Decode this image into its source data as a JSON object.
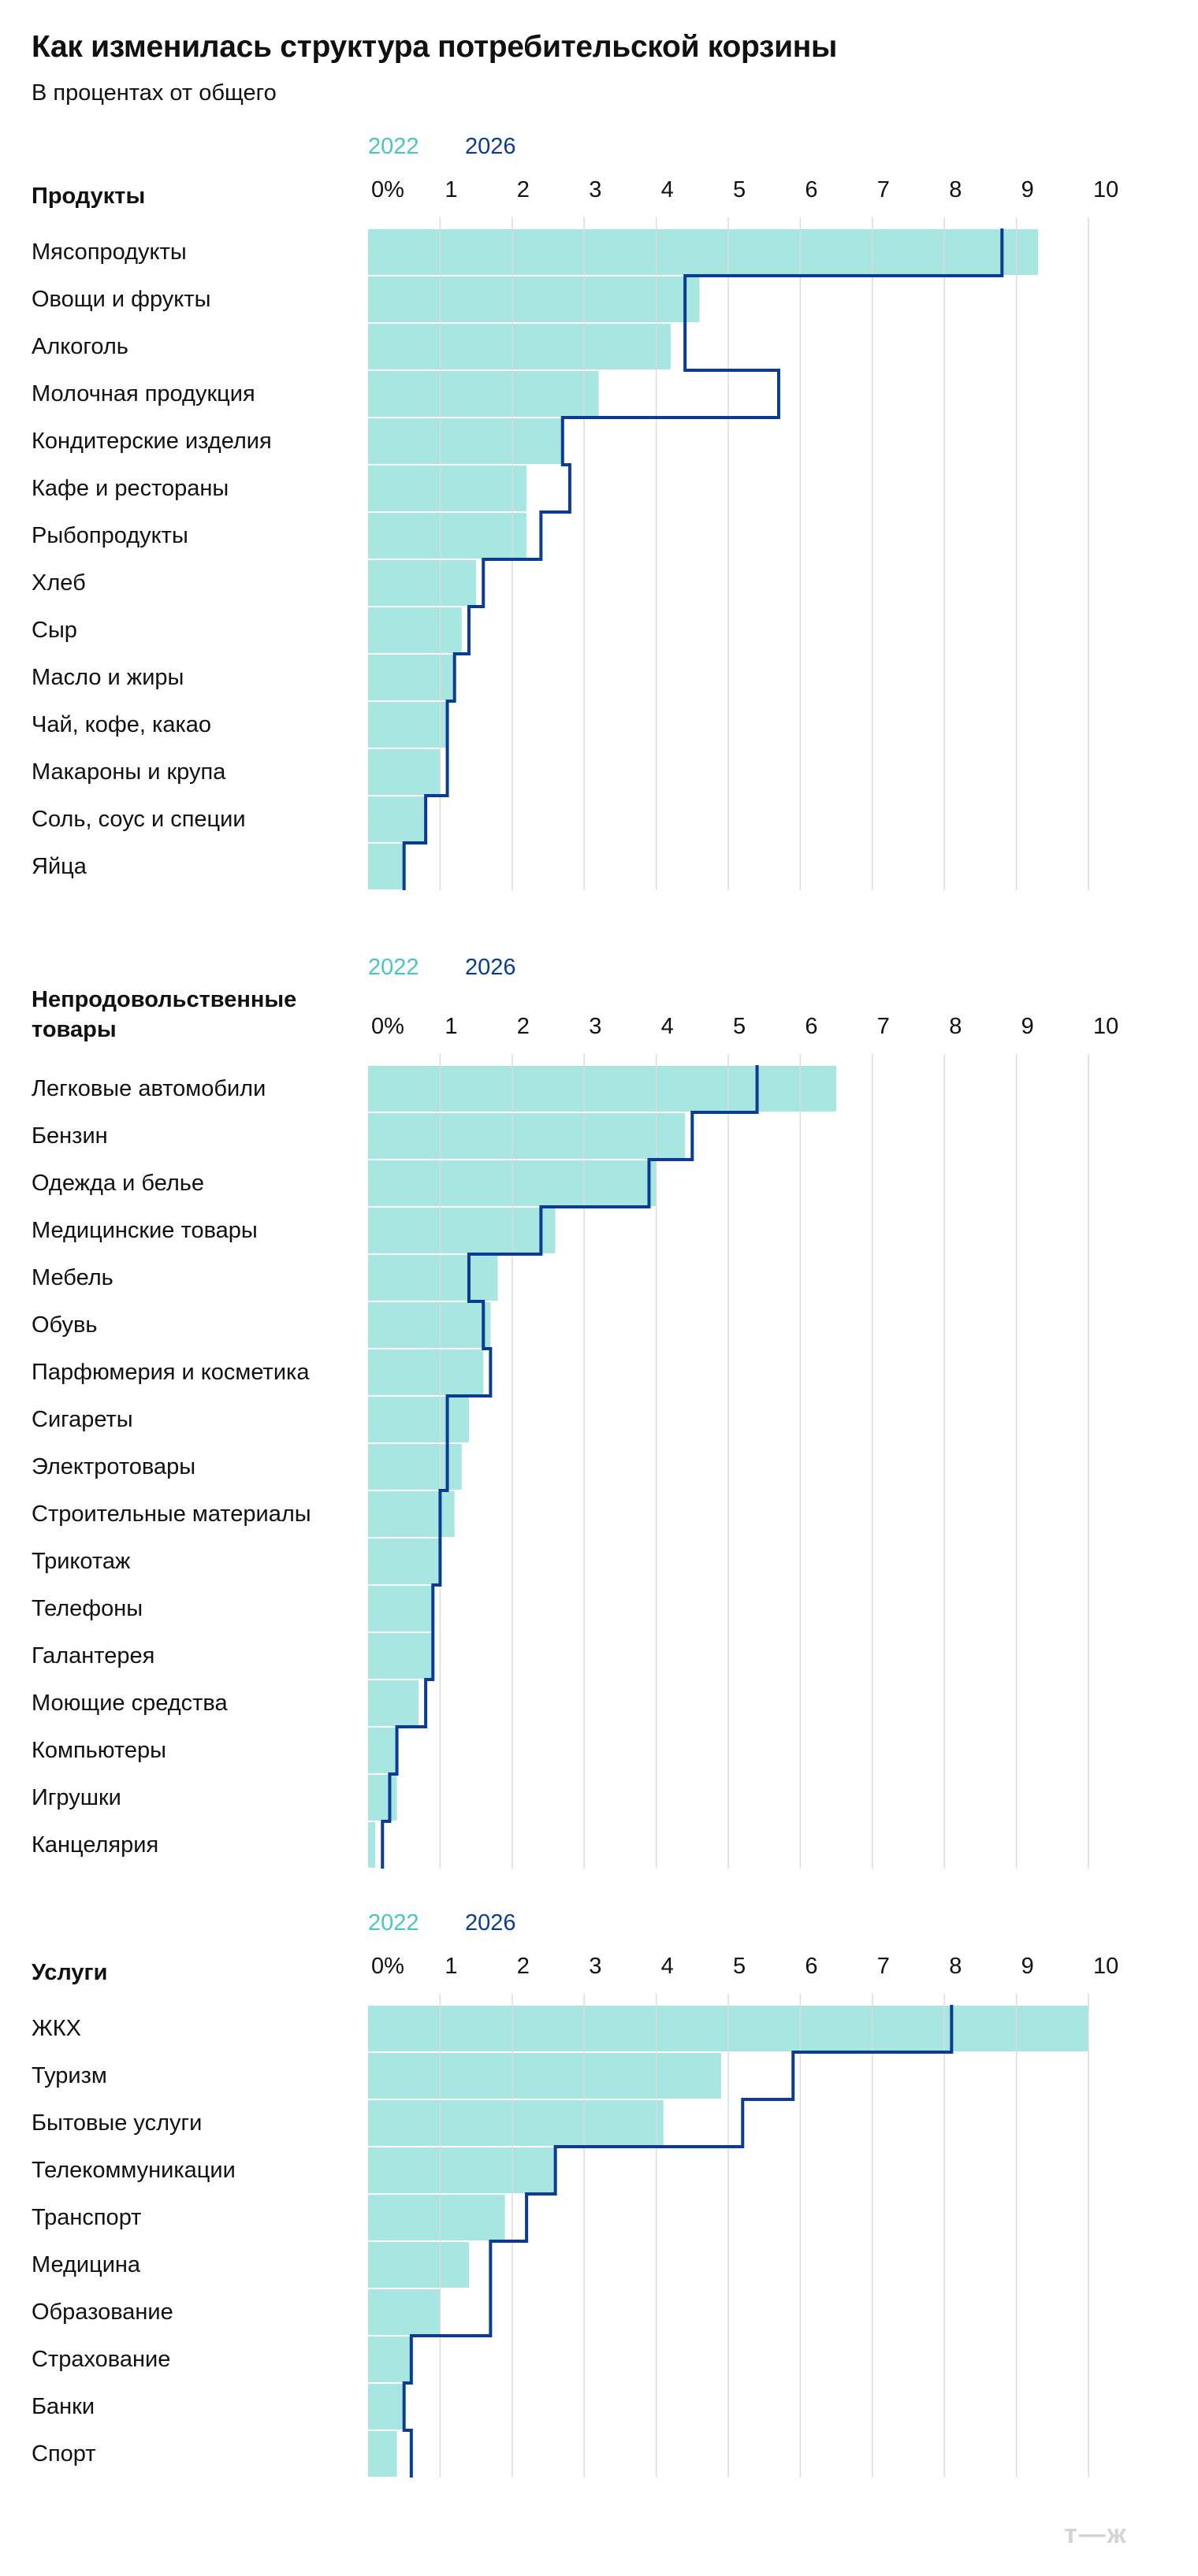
{
  "title": "Как изменилась структура потребительской корзины",
  "subtitle": "В процентах от общего",
  "logo": "т—ж",
  "colors": {
    "series_2022": "#a8e6e2",
    "series_2026": "#0a3d91",
    "legend_2022": "#49c6bf",
    "grid": "#dcdcdc"
  },
  "chart_data": [
    {
      "type": "bar",
      "section": "Продукты",
      "xlim": [
        0,
        10
      ],
      "tick_labels": [
        "0%",
        "1",
        "2",
        "3",
        "4",
        "5",
        "6",
        "7",
        "8",
        "9",
        "10"
      ],
      "categories": [
        "Мясопродукты",
        "Овощи и фрукты",
        "Алкоголь",
        "Молочная продукция",
        "Кондитерские изделия",
        "Кафе и рестораны",
        "Рыбопродукты",
        "Хлеб",
        "Сыр",
        "Масло и жиры",
        "Чай, кофе, какао",
        "Макароны и крупа",
        "Соль, соус и специи",
        "Яйца"
      ],
      "series": [
        {
          "name": "2022",
          "style": "bars",
          "values": [
            9.3,
            4.6,
            4.2,
            3.2,
            2.7,
            2.2,
            2.2,
            1.5,
            1.3,
            1.2,
            1.1,
            1.0,
            0.8,
            0.5
          ]
        },
        {
          "name": "2026",
          "style": "step-line",
          "values": [
            8.8,
            4.4,
            4.4,
            5.7,
            2.7,
            2.8,
            2.4,
            1.6,
            1.4,
            1.2,
            1.1,
            1.1,
            0.8,
            0.5
          ]
        }
      ]
    },
    {
      "type": "bar",
      "section": "Непродовольственные товары",
      "xlim": [
        0,
        10
      ],
      "tick_labels": [
        "0%",
        "1",
        "2",
        "3",
        "4",
        "5",
        "6",
        "7",
        "8",
        "9",
        "10"
      ],
      "categories": [
        "Легковые автомобили",
        "Бензин",
        "Одежда и белье",
        "Медицинские товары",
        "Мебель",
        "Обувь",
        "Парфюмерия и косметика",
        "Сигареты",
        "Электротовары",
        "Строительные материалы",
        "Трикотаж",
        "Телефоны",
        "Галантерея",
        "Моющие средства",
        "Компьютеры",
        "Игрушки",
        "Канцелярия"
      ],
      "series": [
        {
          "name": "2022",
          "style": "bars",
          "values": [
            6.5,
            4.4,
            4.0,
            2.6,
            1.8,
            1.7,
            1.6,
            1.4,
            1.3,
            1.2,
            1.0,
            0.9,
            0.9,
            0.7,
            0.4,
            0.4,
            0.1
          ]
        },
        {
          "name": "2026",
          "style": "step-line",
          "values": [
            5.4,
            4.5,
            3.9,
            2.4,
            1.4,
            1.6,
            1.7,
            1.1,
            1.1,
            1.0,
            1.0,
            0.9,
            0.9,
            0.8,
            0.4,
            0.3,
            0.2
          ]
        }
      ]
    },
    {
      "type": "bar",
      "section": "Услуги",
      "xlim": [
        0,
        10
      ],
      "tick_labels": [
        "0%",
        "1",
        "2",
        "3",
        "4",
        "5",
        "6",
        "7",
        "8",
        "9",
        "10"
      ],
      "categories": [
        "ЖКХ",
        "Туризм",
        "Бытовые услуги",
        "Телекоммуникации",
        "Транспорт",
        "Медицина",
        "Образование",
        "Страхование",
        "Банки",
        "Спорт"
      ],
      "series": [
        {
          "name": "2022",
          "style": "bars",
          "values": [
            10.0,
            4.9,
            4.1,
            2.6,
            1.9,
            1.4,
            1.0,
            0.6,
            0.5,
            0.4
          ]
        },
        {
          "name": "2026",
          "style": "step-line",
          "values": [
            8.1,
            5.9,
            5.2,
            2.6,
            2.2,
            1.7,
            1.7,
            0.6,
            0.5,
            0.6
          ]
        }
      ]
    }
  ]
}
